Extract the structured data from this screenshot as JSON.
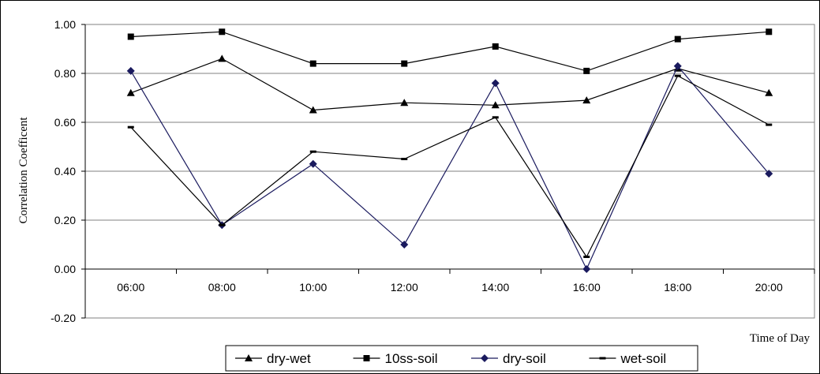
{
  "chart_data": {
    "type": "line",
    "categories": [
      "06:00",
      "08:00",
      "10:00",
      "12:00",
      "14:00",
      "16:00",
      "18:00",
      "20:00"
    ],
    "xlabel": "Time of Day",
    "ylabel": "Correlation Coefficent",
    "ylim": [
      -0.2,
      1.0
    ],
    "yticks": [
      "-0.20",
      "0.00",
      "0.20",
      "0.40",
      "0.60",
      "0.80",
      "1.00"
    ],
    "grid": true,
    "legend_position": "bottom",
    "series": [
      {
        "name": "dry-wet",
        "marker": "triangle",
        "values": [
          0.72,
          0.86,
          0.65,
          0.68,
          0.67,
          0.69,
          0.82,
          0.72
        ]
      },
      {
        "name": "10ss-soil",
        "marker": "square",
        "values": [
          0.95,
          0.97,
          0.84,
          0.84,
          0.91,
          0.81,
          0.94,
          0.97
        ]
      },
      {
        "name": "dry-soil",
        "marker": "diamond",
        "values": [
          0.81,
          0.18,
          0.43,
          0.1,
          0.76,
          0.0,
          0.83,
          0.39
        ]
      },
      {
        "name": "wet-soil",
        "marker": "dash",
        "values": [
          0.58,
          0.18,
          0.48,
          0.45,
          0.62,
          0.05,
          0.79,
          0.59
        ]
      }
    ]
  }
}
